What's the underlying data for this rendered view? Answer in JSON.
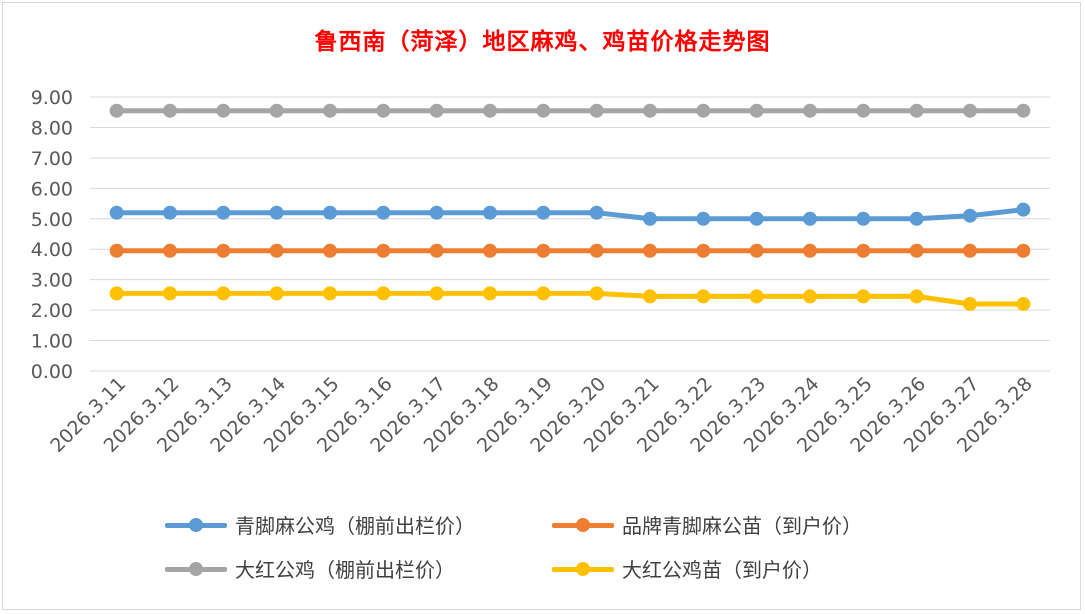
{
  "chart_data": {
    "type": "line",
    "title": "鲁西南（菏泽）地区麻鸡、鸡苗价格走势图",
    "categories": [
      "2026.3.11",
      "2026.3.12",
      "2026.3.13",
      "2026.3.14",
      "2026.3.15",
      "2026.3.16",
      "2026.3.17",
      "2026.3.18",
      "2026.3.19",
      "2026.3.20",
      "2026.3.21",
      "2026.3.22",
      "2026.3.23",
      "2026.3.24",
      "2026.3.25",
      "2026.3.26",
      "2026.3.27",
      "2026.3.28"
    ],
    "y_ticks": [
      "0.00",
      "1.00",
      "2.00",
      "3.00",
      "4.00",
      "5.00",
      "6.00",
      "7.00",
      "8.00",
      "9.00"
    ],
    "ylim": [
      0,
      9
    ],
    "grid": true,
    "legend_position": "bottom",
    "series": [
      {
        "name": "青脚麻公鸡（棚前出栏价）",
        "color": "#5b9bd5",
        "values": [
          5.2,
          5.2,
          5.2,
          5.2,
          5.2,
          5.2,
          5.2,
          5.2,
          5.2,
          5.2,
          5.0,
          5.0,
          5.0,
          5.0,
          5.0,
          5.0,
          5.1,
          5.3
        ]
      },
      {
        "name": "品牌青脚麻公苗（到户价）",
        "color": "#ed7d31",
        "values": [
          3.95,
          3.95,
          3.95,
          3.95,
          3.95,
          3.95,
          3.95,
          3.95,
          3.95,
          3.95,
          3.95,
          3.95,
          3.95,
          3.95,
          3.95,
          3.95,
          3.95,
          3.95
        ]
      },
      {
        "name": "大红公鸡（棚前出栏价）",
        "color": "#a5a5a5",
        "values": [
          8.55,
          8.55,
          8.55,
          8.55,
          8.55,
          8.55,
          8.55,
          8.55,
          8.55,
          8.55,
          8.55,
          8.55,
          8.55,
          8.55,
          8.55,
          8.55,
          8.55,
          8.55
        ]
      },
      {
        "name": "大红公鸡苗（到户价）",
        "color": "#ffc000",
        "values": [
          2.55,
          2.55,
          2.55,
          2.55,
          2.55,
          2.55,
          2.55,
          2.55,
          2.55,
          2.55,
          2.45,
          2.45,
          2.45,
          2.45,
          2.45,
          2.45,
          2.2,
          2.2
        ]
      }
    ]
  }
}
